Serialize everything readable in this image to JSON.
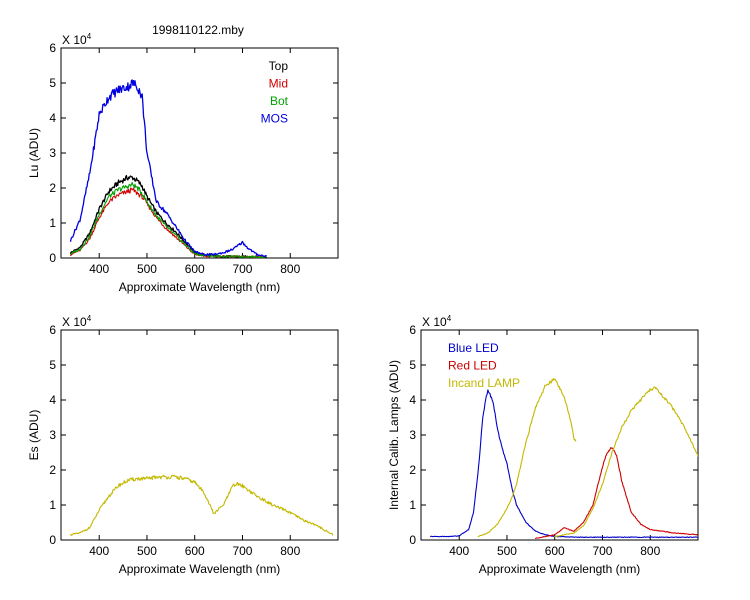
{
  "figure_title": "1998110122.mby",
  "colors": {
    "top": "#000000",
    "mid": "#d40000",
    "bot": "#00a000",
    "mos": "#0000e0",
    "blue_led": "#0000cc",
    "red_led": "#cc0000",
    "incand": "#c4b800"
  },
  "chart_data": [
    {
      "id": "lu",
      "type": "line",
      "title": "1998110122.mby",
      "xlabel": "Approximate Wavelength (nm)",
      "ylabel": "Lu (ADU)",
      "exponent_label": "X 10",
      "exponent_power": "4",
      "xlim": [
        320,
        900
      ],
      "ylim": [
        0,
        6
      ],
      "xticks": [
        400,
        500,
        600,
        700,
        800
      ],
      "yticks": [
        0,
        1,
        2,
        3,
        4,
        5,
        6
      ],
      "legend_position": "top-right",
      "noise": 0.06,
      "series": [
        {
          "name": "Top",
          "color_key": "top",
          "points": [
            [
              340,
              0.15
            ],
            [
              360,
              0.3
            ],
            [
              380,
              0.7
            ],
            [
              400,
              1.4
            ],
            [
              420,
              1.9
            ],
            [
              440,
              2.15
            ],
            [
              460,
              2.3
            ],
            [
              470,
              2.3
            ],
            [
              480,
              2.2
            ],
            [
              490,
              2.05
            ],
            [
              500,
              1.75
            ],
            [
              520,
              1.3
            ],
            [
              540,
              1.0
            ],
            [
              560,
              0.75
            ],
            [
              580,
              0.45
            ],
            [
              600,
              0.15
            ],
            [
              620,
              0.08
            ],
            [
              650,
              0.05
            ],
            [
              700,
              0.04
            ],
            [
              750,
              0.03
            ]
          ]
        },
        {
          "name": "Mid",
          "color_key": "mid",
          "points": [
            [
              340,
              0.1
            ],
            [
              360,
              0.22
            ],
            [
              380,
              0.55
            ],
            [
              400,
              1.15
            ],
            [
              420,
              1.6
            ],
            [
              440,
              1.8
            ],
            [
              460,
              1.9
            ],
            [
              470,
              1.95
            ],
            [
              480,
              1.85
            ],
            [
              490,
              1.75
            ],
            [
              500,
              1.55
            ],
            [
              520,
              1.15
            ],
            [
              540,
              0.85
            ],
            [
              560,
              0.6
            ],
            [
              580,
              0.35
            ],
            [
              600,
              0.1
            ],
            [
              620,
              0.06
            ],
            [
              650,
              0.05
            ],
            [
              700,
              0.04
            ],
            [
              750,
              0.03
            ]
          ]
        },
        {
          "name": "Bot",
          "color_key": "bot",
          "points": [
            [
              340,
              0.12
            ],
            [
              360,
              0.25
            ],
            [
              380,
              0.62
            ],
            [
              400,
              1.25
            ],
            [
              420,
              1.75
            ],
            [
              440,
              1.95
            ],
            [
              460,
              2.05
            ],
            [
              470,
              2.1
            ],
            [
              480,
              2.0
            ],
            [
              490,
              1.85
            ],
            [
              500,
              1.6
            ],
            [
              520,
              1.2
            ],
            [
              540,
              0.9
            ],
            [
              560,
              0.65
            ],
            [
              580,
              0.38
            ],
            [
              600,
              0.12
            ],
            [
              620,
              0.07
            ],
            [
              650,
              0.05
            ],
            [
              700,
              0.04
            ],
            [
              750,
              0.03
            ]
          ]
        },
        {
          "name": "MOS",
          "color_key": "mos",
          "points": [
            [
              340,
              0.5
            ],
            [
              360,
              1.1
            ],
            [
              380,
              2.4
            ],
            [
              400,
              4.1
            ],
            [
              420,
              4.6
            ],
            [
              440,
              4.8
            ],
            [
              460,
              4.9
            ],
            [
              470,
              5.0
            ],
            [
              480,
              4.9
            ],
            [
              490,
              4.6
            ],
            [
              500,
              3.0
            ],
            [
              520,
              1.6
            ],
            [
              540,
              1.3
            ],
            [
              560,
              0.9
            ],
            [
              580,
              0.5
            ],
            [
              600,
              0.18
            ],
            [
              620,
              0.1
            ],
            [
              640,
              0.1
            ],
            [
              660,
              0.15
            ],
            [
              680,
              0.25
            ],
            [
              700,
              0.45
            ],
            [
              710,
              0.3
            ],
            [
              730,
              0.1
            ],
            [
              750,
              0.05
            ]
          ]
        }
      ]
    },
    {
      "id": "es",
      "type": "line",
      "xlabel": "Approximate Wavelength (nm)",
      "ylabel": "Es  (ADU)",
      "exponent_label": "X 10",
      "exponent_power": "4",
      "xlim": [
        320,
        900
      ],
      "ylim": [
        0,
        6
      ],
      "xticks": [
        400,
        500,
        600,
        700,
        800
      ],
      "yticks": [
        0,
        1,
        2,
        3,
        4,
        5,
        6
      ],
      "noise": 0.05,
      "series": [
        {
          "name": "",
          "color_key": "incand",
          "points": [
            [
              340,
              0.15
            ],
            [
              360,
              0.2
            ],
            [
              380,
              0.35
            ],
            [
              400,
              0.85
            ],
            [
              420,
              1.25
            ],
            [
              440,
              1.55
            ],
            [
              460,
              1.7
            ],
            [
              480,
              1.75
            ],
            [
              500,
              1.75
            ],
            [
              520,
              1.8
            ],
            [
              540,
              1.8
            ],
            [
              560,
              1.8
            ],
            [
              580,
              1.75
            ],
            [
              600,
              1.65
            ],
            [
              620,
              1.35
            ],
            [
              640,
              0.75
            ],
            [
              660,
              1.0
            ],
            [
              680,
              1.55
            ],
            [
              690,
              1.6
            ],
            [
              700,
              1.55
            ],
            [
              710,
              1.45
            ],
            [
              730,
              1.25
            ],
            [
              750,
              1.1
            ],
            [
              770,
              0.95
            ],
            [
              790,
              0.85
            ],
            [
              810,
              0.7
            ],
            [
              830,
              0.55
            ],
            [
              850,
              0.45
            ],
            [
              870,
              0.3
            ],
            [
              890,
              0.15
            ]
          ]
        }
      ]
    },
    {
      "id": "lamps",
      "type": "line",
      "xlabel": "Approximate Wavelength (nm)",
      "ylabel": "Internal Calib. Lamps (ADU)",
      "exponent_label": "X 10",
      "exponent_power": "4",
      "xlim": [
        320,
        900
      ],
      "ylim": [
        0,
        6
      ],
      "xticks": [
        400,
        500,
        600,
        700,
        800
      ],
      "yticks": [
        0,
        1,
        2,
        3,
        4,
        5,
        6
      ],
      "legend_position": "top-left",
      "noise": 0.02,
      "series": [
        {
          "name": "Blue LED",
          "color_key": "blue_led",
          "points": [
            [
              340,
              0.1
            ],
            [
              380,
              0.1
            ],
            [
              400,
              0.12
            ],
            [
              420,
              0.3
            ],
            [
              430,
              0.8
            ],
            [
              440,
              2.0
            ],
            [
              450,
              3.6
            ],
            [
              460,
              4.3
            ],
            [
              470,
              4.0
            ],
            [
              480,
              3.2
            ],
            [
              490,
              2.6
            ],
            [
              500,
              2.2
            ],
            [
              510,
              1.5
            ],
            [
              520,
              1.0
            ],
            [
              540,
              0.5
            ],
            [
              560,
              0.25
            ],
            [
              580,
              0.15
            ],
            [
              600,
              0.1
            ],
            [
              650,
              0.08
            ],
            [
              700,
              0.08
            ],
            [
              800,
              0.08
            ],
            [
              900,
              0.08
            ]
          ]
        },
        {
          "name": "Red LED",
          "color_key": "red_led",
          "points": [
            [
              560,
              0.05
            ],
            [
              600,
              0.15
            ],
            [
              620,
              0.35
            ],
            [
              640,
              0.25
            ],
            [
              660,
              0.5
            ],
            [
              680,
              1.0
            ],
            [
              700,
              2.1
            ],
            [
              710,
              2.5
            ],
            [
              720,
              2.65
            ],
            [
              730,
              2.4
            ],
            [
              740,
              1.7
            ],
            [
              760,
              0.8
            ],
            [
              780,
              0.45
            ],
            [
              800,
              0.3
            ],
            [
              850,
              0.2
            ],
            [
              900,
              0.15
            ]
          ]
        },
        {
          "name": "Incand LAMP",
          "color_key": "incand",
          "points": [
            [
              440,
              0.1
            ],
            [
              460,
              0.2
            ],
            [
              480,
              0.45
            ],
            [
              500,
              0.9
            ],
            [
              510,
              1.2
            ],
            [
              520,
              1.6
            ],
            [
              540,
              2.8
            ],
            [
              560,
              3.8
            ],
            [
              580,
              4.4
            ],
            [
              600,
              4.6
            ],
            [
              620,
              4.1
            ],
            [
              635,
              3.3
            ],
            [
              640,
              2.9
            ],
            [
              645,
              2.8
            ]
          ]
        },
        {
          "name": "",
          "color_key": "incand",
          "points": [
            [
              600,
              0.1
            ],
            [
              640,
              0.2
            ],
            [
              660,
              0.4
            ],
            [
              680,
              0.9
            ],
            [
              700,
              1.6
            ],
            [
              720,
              2.5
            ],
            [
              740,
              3.2
            ],
            [
              760,
              3.7
            ],
            [
              780,
              4.0
            ],
            [
              800,
              4.3
            ],
            [
              810,
              4.35
            ],
            [
              820,
              4.2
            ],
            [
              840,
              3.9
            ],
            [
              860,
              3.5
            ],
            [
              880,
              3.0
            ],
            [
              900,
              2.4
            ]
          ]
        }
      ]
    }
  ]
}
